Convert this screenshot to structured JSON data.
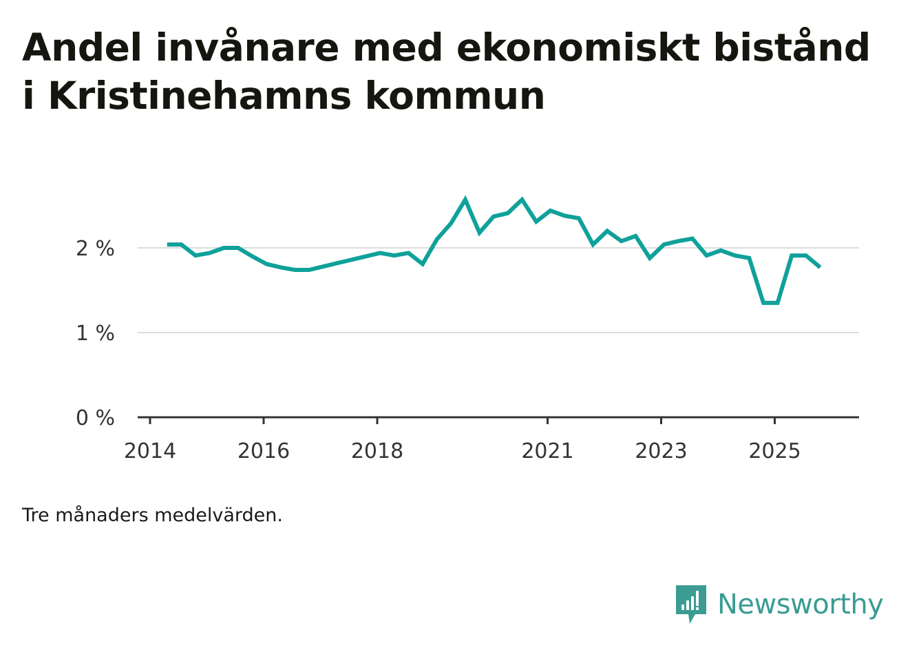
{
  "title": "Andel invånare med ekonomiskt bistånd i Kristinehamns kommun",
  "note": "Tre månaders medelvärden.",
  "brand": {
    "name": "Newsworthy",
    "icon": "newsworthy-logo-icon",
    "color": "#3a9c92"
  },
  "chart_data": {
    "type": "line",
    "title": "Andel invånare med ekonomiskt bistånd i Kristinehamns kommun",
    "xlabel": "",
    "ylabel": "",
    "ylim": [
      0,
      2.9
    ],
    "xlim": [
      2014.0,
      2026.5
    ],
    "grid": true,
    "line_color": "#0fa19a",
    "y_ticks": [
      {
        "value": 0,
        "label": "0 %"
      },
      {
        "value": 1,
        "label": "1 %"
      },
      {
        "value": 2,
        "label": "2 %"
      }
    ],
    "x_ticks": [
      {
        "value": 2014,
        "label": "2014"
      },
      {
        "value": 2016,
        "label": "2016"
      },
      {
        "value": 2018,
        "label": "2018"
      },
      {
        "value": 2021,
        "label": "2021"
      },
      {
        "value": 2023,
        "label": "2023"
      },
      {
        "value": 2025,
        "label": "2025"
      }
    ],
    "series": [
      {
        "name": "Andel invånare med ekonomiskt bistånd",
        "x": [
          2014.3,
          2014.55,
          2014.8,
          2015.05,
          2015.3,
          2015.55,
          2015.8,
          2016.05,
          2016.3,
          2016.55,
          2016.8,
          2017.05,
          2017.3,
          2017.55,
          2017.8,
          2018.05,
          2018.3,
          2018.55,
          2018.8,
          2019.05,
          2019.3,
          2019.55,
          2019.8,
          2020.05,
          2020.3,
          2020.55,
          2020.8,
          2021.05,
          2021.3,
          2021.55,
          2021.8,
          2022.05,
          2022.3,
          2022.55,
          2022.8,
          2023.05,
          2023.3,
          2023.55,
          2023.8,
          2024.05,
          2024.3,
          2024.55,
          2024.8,
          2025.05,
          2025.3,
          2025.55,
          2025.8
        ],
        "values": [
          2.04,
          2.04,
          1.91,
          1.94,
          2.0,
          2.0,
          1.9,
          1.81,
          1.77,
          1.74,
          1.74,
          1.78,
          1.82,
          1.86,
          1.9,
          1.94,
          1.91,
          1.94,
          1.81,
          2.1,
          2.29,
          2.57,
          2.18,
          2.37,
          2.41,
          2.57,
          2.31,
          2.44,
          2.38,
          2.35,
          2.04,
          2.2,
          2.08,
          2.14,
          1.88,
          2.04,
          2.08,
          2.11,
          1.91,
          1.97,
          1.91,
          1.88,
          1.35,
          1.35,
          1.91,
          1.91,
          1.77
        ]
      }
    ]
  }
}
